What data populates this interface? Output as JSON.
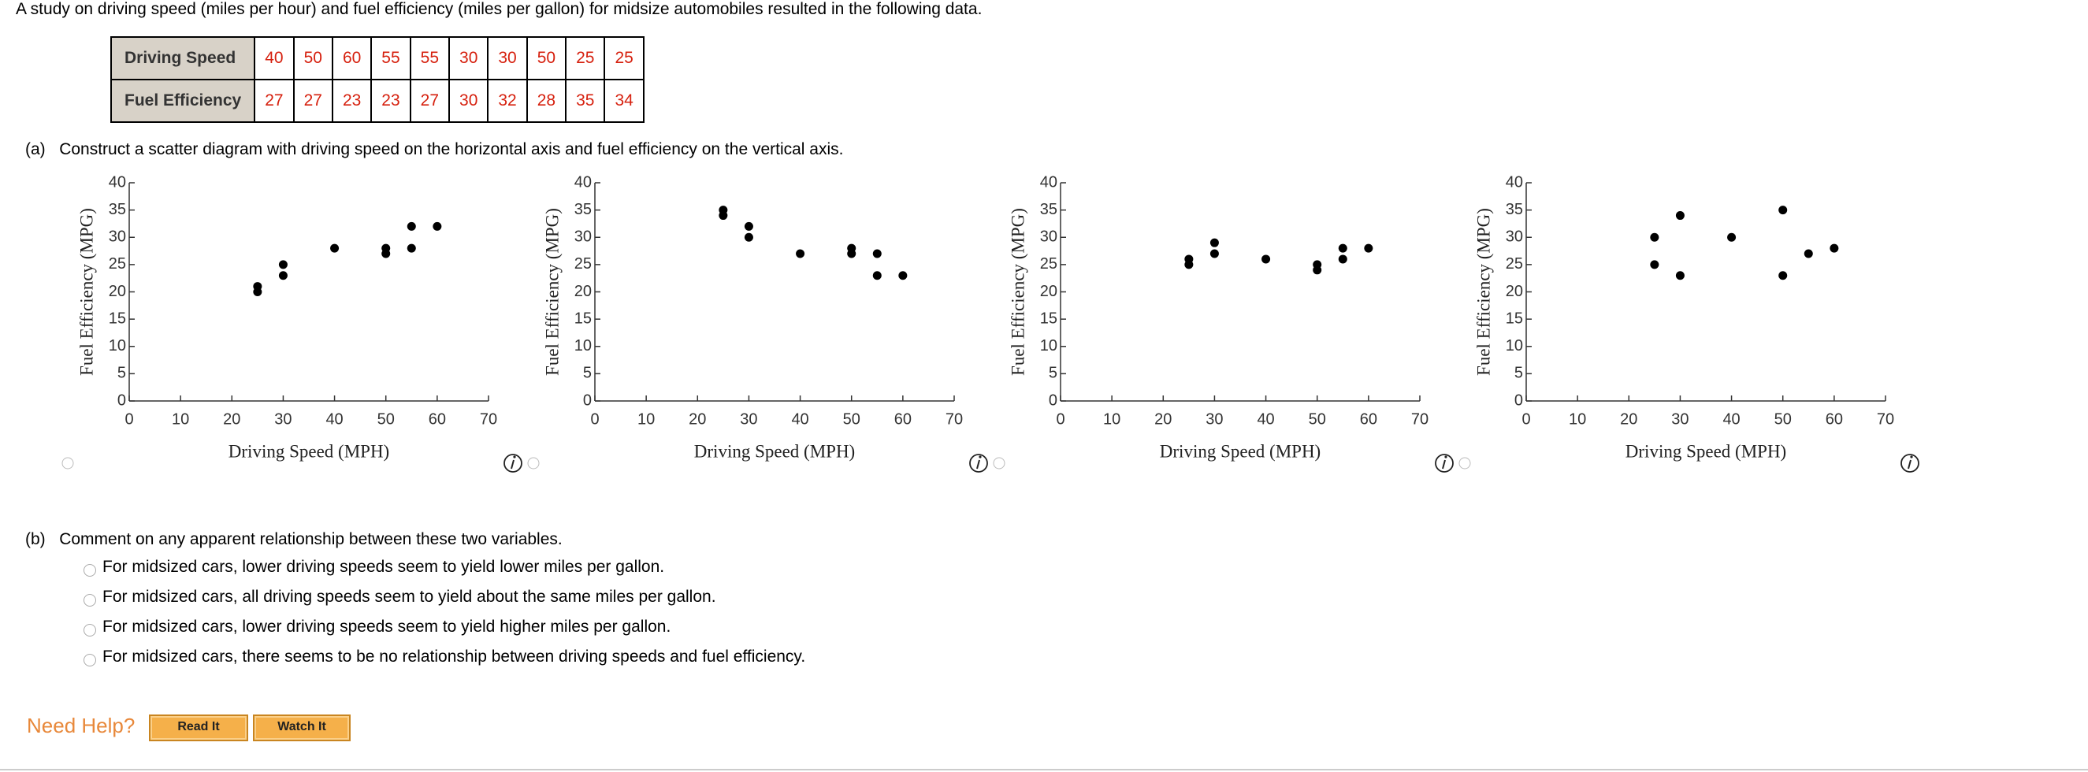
{
  "question": "A study on driving speed (miles per hour) and fuel efficiency (miles per gallon) for midsize automobiles resulted in the following data.",
  "table": {
    "rows": [
      {
        "header": "Driving Speed",
        "cells": [
          40,
          50,
          60,
          55,
          55,
          30,
          30,
          50,
          25,
          25
        ]
      },
      {
        "header": "Fuel Efficiency",
        "cells": [
          27,
          27,
          23,
          23,
          27,
          30,
          32,
          28,
          35,
          34
        ]
      }
    ]
  },
  "part_a": {
    "label": "(a)",
    "text": "Construct a scatter diagram with driving speed on the horizontal axis and fuel efficiency on the vertical axis."
  },
  "chart_data": [
    {
      "type": "scatter",
      "x_label": "Driving Speed (MPH)",
      "y_label": "Fuel Efficiency (MPG)",
      "color": "#000000",
      "x": [
        25,
        25,
        30,
        30,
        40,
        50,
        50,
        55,
        55,
        60
      ],
      "values": [
        20,
        21,
        23,
        25,
        28,
        27,
        28,
        28,
        32,
        32
      ],
      "xlim": [
        0,
        70
      ],
      "xticks": [
        0,
        10,
        20,
        30,
        40,
        50,
        60,
        70
      ],
      "ylim": [
        0,
        40
      ],
      "yticks": [
        0,
        5,
        10,
        15,
        20,
        25,
        30,
        35,
        40
      ]
    },
    {
      "type": "scatter",
      "x_label": "Driving Speed (MPH)",
      "y_label": "Fuel Efficiency (MPG)",
      "color": "#000000",
      "x": [
        25,
        25,
        30,
        30,
        40,
        50,
        50,
        55,
        55,
        60
      ],
      "values": [
        35,
        34,
        32,
        30,
        27,
        28,
        27,
        27,
        23,
        23
      ],
      "xlim": [
        0,
        70
      ],
      "xticks": [
        0,
        10,
        20,
        30,
        40,
        50,
        60,
        70
      ],
      "ylim": [
        0,
        40
      ],
      "yticks": [
        0,
        5,
        10,
        15,
        20,
        25,
        30,
        35,
        40
      ]
    },
    {
      "type": "scatter",
      "x_label": "Driving Speed (MPH)",
      "y_label": "Fuel Efficiency (MPG)",
      "color": "#000000",
      "x": [
        25,
        25,
        30,
        30,
        40,
        50,
        50,
        55,
        55,
        60
      ],
      "values": [
        26,
        25,
        29,
        27,
        26,
        25,
        24,
        28,
        26,
        28
      ],
      "xlim": [
        0,
        70
      ],
      "xticks": [
        0,
        10,
        20,
        30,
        40,
        50,
        60,
        70
      ],
      "ylim": [
        0,
        40
      ],
      "yticks": [
        0,
        5,
        10,
        15,
        20,
        25,
        30,
        35,
        40
      ]
    },
    {
      "type": "scatter",
      "x_label": "Driving Speed (MPH)",
      "y_label": "Fuel Efficiency (MPG)",
      "color": "#000000",
      "x": [
        25,
        25,
        30,
        30,
        40,
        50,
        50,
        55,
        60
      ],
      "values": [
        30,
        25,
        34,
        23,
        30,
        35,
        23,
        27,
        28
      ],
      "xlim": [
        0,
        70
      ],
      "xticks": [
        0,
        10,
        20,
        30,
        40,
        50,
        60,
        70
      ],
      "ylim": [
        0,
        40
      ],
      "yticks": [
        0,
        5,
        10,
        15,
        20,
        25,
        30,
        35,
        40
      ]
    }
  ],
  "part_b": {
    "label": "(b)",
    "text": "Comment on any apparent relationship between these two variables.",
    "options": [
      "For midsized cars, lower driving speeds seem to yield lower miles per gallon.",
      "For midsized cars, all driving speeds seem to yield about the same miles per gallon.",
      "For midsized cars, lower driving speeds seem to yield higher miles per gallon.",
      "For midsized cars, there seems to be no relationship between driving speeds and fuel efficiency."
    ]
  },
  "help": {
    "label": "Need Help?",
    "buttons": [
      "Read It",
      "Watch It"
    ]
  }
}
